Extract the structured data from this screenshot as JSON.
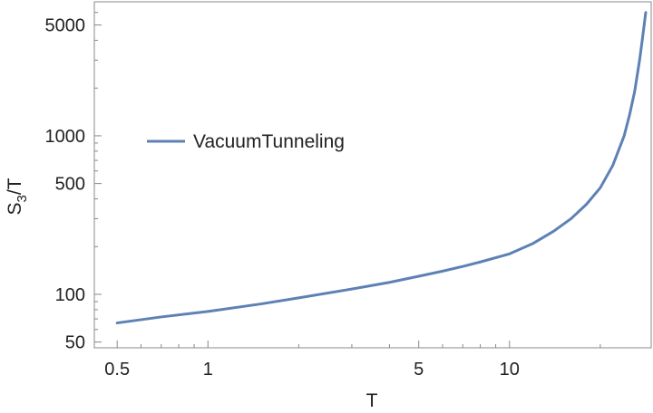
{
  "chart_data": {
    "type": "line",
    "xscale": "log",
    "yscale": "log",
    "xlim": [
      0.42,
      29.5
    ],
    "ylim": [
      46,
      7000
    ],
    "xlabel": "T",
    "ylabel_main": "S",
    "ylabel_sub": "3",
    "ylabel_rest": "/T",
    "x_ticks": [
      0.5,
      1,
      5,
      10
    ],
    "x_tick_labels": [
      "0.5",
      "1",
      "5",
      "10"
    ],
    "y_ticks": [
      50,
      100,
      500,
      1000,
      5000
    ],
    "y_tick_labels": [
      "50",
      "100",
      "500",
      "1000",
      "5000"
    ],
    "grid": false,
    "legend_position": "upper-left",
    "line_color": "#5e81b5",
    "series": [
      {
        "name": "VacuumTunneling",
        "x": [
          0.5,
          0.7,
          1,
          1.5,
          2,
          3,
          4,
          5,
          6,
          7,
          8,
          10,
          12,
          14,
          16,
          18,
          20,
          22,
          24,
          25,
          26,
          27,
          27.5,
          28,
          28.3
        ],
        "y": [
          66,
          72,
          78,
          87,
          95,
          108,
          119,
          130,
          140,
          150,
          160,
          180,
          210,
          250,
          300,
          370,
          470,
          650,
          1000,
          1350,
          1900,
          3000,
          3900,
          5100,
          6000
        ]
      }
    ]
  }
}
